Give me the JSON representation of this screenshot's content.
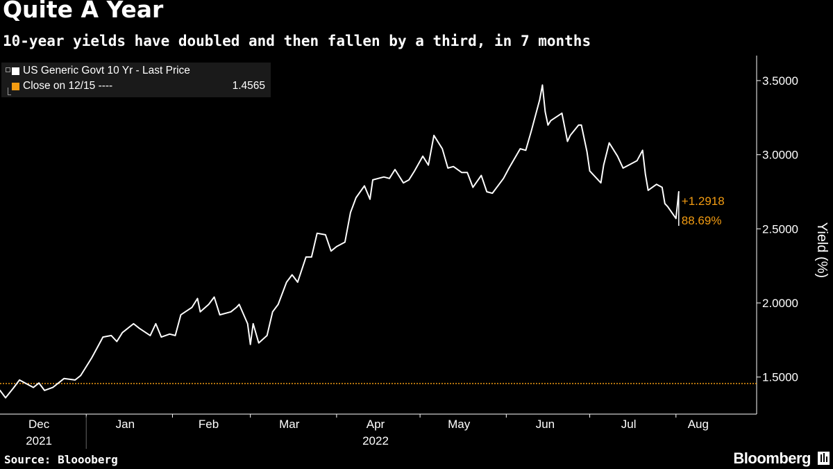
{
  "header": {
    "title": "Quite A Year",
    "subtitle": "10-year yields have doubled and then fallen by a third, in 7 months"
  },
  "legend": {
    "items": [
      {
        "label": "US Generic Govt 10 Yr - Last Price",
        "value": "",
        "color": "#ffffff"
      },
      {
        "label": "Close on 12/15 ----",
        "value": "1.4565",
        "color": "#f39c12"
      }
    ]
  },
  "footer": {
    "source": "Source: Bloooberg",
    "brand": "Bloomberg",
    "brand_icon": "bloomberg-terminal-icon"
  },
  "colors": {
    "background": "#000000",
    "line": "#ffffff",
    "accent": "#f39c12",
    "axis": "#ffffff",
    "tick_separator": "#666666"
  },
  "chart_data": {
    "type": "line",
    "title": "Quite A Year",
    "subtitle": "10-year yields have doubled and then fallen by a third, in 7 months",
    "ylabel": "Yield (%)",
    "xlabel": "",
    "ylim": [
      1.25,
      3.65
    ],
    "yticks": [
      1.5,
      2.0,
      2.5,
      3.0,
      3.5
    ],
    "ytick_labels": [
      "1.5000",
      "2.0000",
      "2.5000",
      "3.0000",
      "3.5000"
    ],
    "xlim": [
      "2021-12-01",
      "2022-08-30"
    ],
    "month_ticks": [
      {
        "label": "Dec",
        "year": "2021",
        "date": "2021-12-15"
      },
      {
        "label": "Jan",
        "year": "",
        "date": "2022-01-15"
      },
      {
        "label": "Feb",
        "year": "",
        "date": "2022-02-14"
      },
      {
        "label": "Mar",
        "year": "",
        "date": "2022-03-15"
      },
      {
        "label": "Apr",
        "year": "2022",
        "date": "2022-04-15"
      },
      {
        "label": "May",
        "year": "",
        "date": "2022-05-15"
      },
      {
        "label": "Jun",
        "year": "",
        "date": "2022-06-15"
      },
      {
        "label": "Jul",
        "year": "",
        "date": "2022-07-15"
      },
      {
        "label": "Aug",
        "year": "",
        "date": "2022-08-09"
      }
    ],
    "month_separators": [
      "2022-01-01",
      "2022-02-01",
      "2022-03-01",
      "2022-04-01",
      "2022-05-01",
      "2022-06-01",
      "2022-07-01",
      "2022-08-01"
    ],
    "year_separator": "2022-01-01",
    "reference_line": {
      "label": "Close on 12/15",
      "value": 1.4565
    },
    "change_annotation": {
      "change": "+1.2918",
      "percent": "88.69%"
    },
    "grid": false,
    "legend_position": "top-left",
    "series": [
      {
        "name": "US Generic Govt 10 Yr - Last Price",
        "points": [
          [
            "2021-12-01",
            1.41
          ],
          [
            "2021-12-03",
            1.36
          ],
          [
            "2021-12-06",
            1.43
          ],
          [
            "2021-12-08",
            1.48
          ],
          [
            "2021-12-10",
            1.46
          ],
          [
            "2021-12-13",
            1.43
          ],
          [
            "2021-12-15",
            1.46
          ],
          [
            "2021-12-17",
            1.41
          ],
          [
            "2021-12-20",
            1.43
          ],
          [
            "2021-12-22",
            1.46
          ],
          [
            "2021-12-24",
            1.49
          ],
          [
            "2021-12-28",
            1.48
          ],
          [
            "2021-12-30",
            1.51
          ],
          [
            "2022-01-03",
            1.63
          ],
          [
            "2022-01-05",
            1.7
          ],
          [
            "2022-01-07",
            1.77
          ],
          [
            "2022-01-10",
            1.78
          ],
          [
            "2022-01-12",
            1.74
          ],
          [
            "2022-01-14",
            1.8
          ],
          [
            "2022-01-18",
            1.86
          ],
          [
            "2022-01-20",
            1.83
          ],
          [
            "2022-01-24",
            1.78
          ],
          [
            "2022-01-26",
            1.86
          ],
          [
            "2022-01-28",
            1.77
          ],
          [
            "2022-01-31",
            1.79
          ],
          [
            "2022-02-02",
            1.78
          ],
          [
            "2022-02-04",
            1.92
          ],
          [
            "2022-02-08",
            1.97
          ],
          [
            "2022-02-10",
            2.03
          ],
          [
            "2022-02-11",
            1.94
          ],
          [
            "2022-02-14",
            1.99
          ],
          [
            "2022-02-16",
            2.04
          ],
          [
            "2022-02-18",
            1.92
          ],
          [
            "2022-02-22",
            1.94
          ],
          [
            "2022-02-24",
            1.97
          ],
          [
            "2022-02-25",
            1.99
          ],
          [
            "2022-02-28",
            1.86
          ],
          [
            "2022-03-01",
            1.72
          ],
          [
            "2022-03-02",
            1.86
          ],
          [
            "2022-03-04",
            1.73
          ],
          [
            "2022-03-07",
            1.78
          ],
          [
            "2022-03-09",
            1.94
          ],
          [
            "2022-03-11",
            1.99
          ],
          [
            "2022-03-14",
            2.14
          ],
          [
            "2022-03-16",
            2.19
          ],
          [
            "2022-03-18",
            2.14
          ],
          [
            "2022-03-21",
            2.31
          ],
          [
            "2022-03-23",
            2.31
          ],
          [
            "2022-03-25",
            2.47
          ],
          [
            "2022-03-28",
            2.46
          ],
          [
            "2022-03-30",
            2.35
          ],
          [
            "2022-04-01",
            2.38
          ],
          [
            "2022-04-04",
            2.41
          ],
          [
            "2022-04-06",
            2.61
          ],
          [
            "2022-04-08",
            2.71
          ],
          [
            "2022-04-11",
            2.79
          ],
          [
            "2022-04-13",
            2.7
          ],
          [
            "2022-04-14",
            2.83
          ],
          [
            "2022-04-18",
            2.85
          ],
          [
            "2022-04-20",
            2.84
          ],
          [
            "2022-04-22",
            2.9
          ],
          [
            "2022-04-25",
            2.81
          ],
          [
            "2022-04-27",
            2.83
          ],
          [
            "2022-04-29",
            2.89
          ],
          [
            "2022-05-02",
            2.99
          ],
          [
            "2022-05-04",
            2.93
          ],
          [
            "2022-05-06",
            3.13
          ],
          [
            "2022-05-09",
            3.04
          ],
          [
            "2022-05-11",
            2.91
          ],
          [
            "2022-05-13",
            2.92
          ],
          [
            "2022-05-16",
            2.88
          ],
          [
            "2022-05-18",
            2.88
          ],
          [
            "2022-05-20",
            2.78
          ],
          [
            "2022-05-23",
            2.86
          ],
          [
            "2022-05-25",
            2.75
          ],
          [
            "2022-05-27",
            2.74
          ],
          [
            "2022-05-31",
            2.84
          ],
          [
            "2022-06-02",
            2.91
          ],
          [
            "2022-06-06",
            3.04
          ],
          [
            "2022-06-08",
            3.03
          ],
          [
            "2022-06-10",
            3.16
          ],
          [
            "2022-06-13",
            3.37
          ],
          [
            "2022-06-14",
            3.47
          ],
          [
            "2022-06-15",
            3.29
          ],
          [
            "2022-06-16",
            3.2
          ],
          [
            "2022-06-17",
            3.23
          ],
          [
            "2022-06-21",
            3.28
          ],
          [
            "2022-06-23",
            3.09
          ],
          [
            "2022-06-24",
            3.13
          ],
          [
            "2022-06-27",
            3.2
          ],
          [
            "2022-06-28",
            3.2
          ],
          [
            "2022-06-30",
            3.02
          ],
          [
            "2022-07-01",
            2.89
          ],
          [
            "2022-07-05",
            2.81
          ],
          [
            "2022-07-06",
            2.93
          ],
          [
            "2022-07-08",
            3.08
          ],
          [
            "2022-07-11",
            2.99
          ],
          [
            "2022-07-13",
            2.91
          ],
          [
            "2022-07-15",
            2.93
          ],
          [
            "2022-07-18",
            2.96
          ],
          [
            "2022-07-20",
            3.03
          ],
          [
            "2022-07-21",
            2.87
          ],
          [
            "2022-07-22",
            2.76
          ],
          [
            "2022-07-25",
            2.8
          ],
          [
            "2022-07-27",
            2.78
          ],
          [
            "2022-07-28",
            2.67
          ],
          [
            "2022-07-29",
            2.65
          ],
          [
            "2022-08-01",
            2.57
          ],
          [
            "2022-08-02",
            2.75
          ]
        ]
      }
    ]
  }
}
